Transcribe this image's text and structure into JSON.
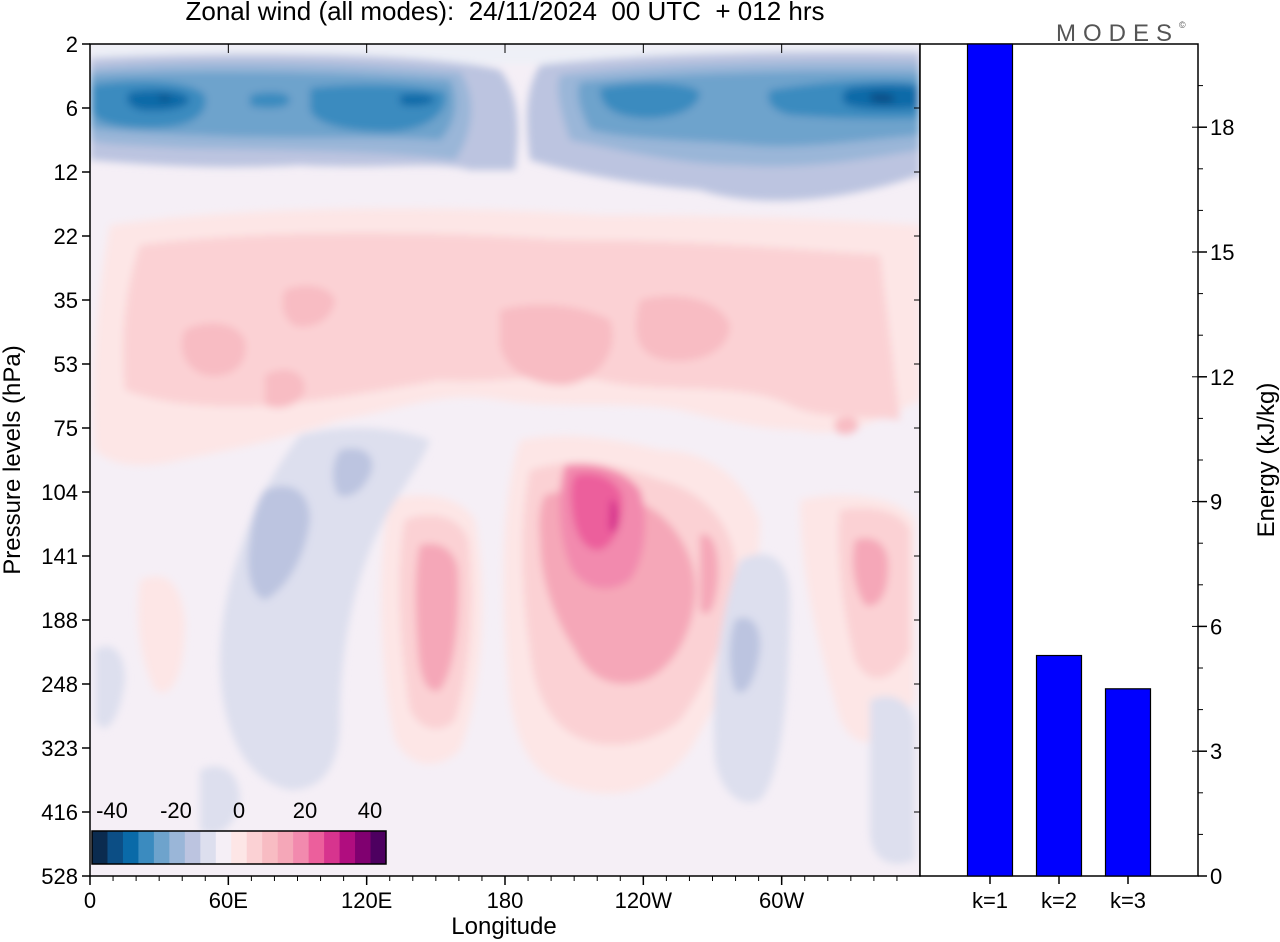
{
  "title": "Zonal wind (all modes):  24/11/2024  00 UTC  + 012 hrs",
  "brand": {
    "name": "MODES",
    "mark": "©"
  },
  "colors": {
    "energy_bar": "#0000ff",
    "scale": [
      "#0b2b4f",
      "#0c4e85",
      "#0a6aa8",
      "#3b8bbf",
      "#6ea3cc",
      "#9ab6d8",
      "#bcc4e0",
      "#dddfee",
      "#f5eff6",
      "#fde6e6",
      "#fbd1d4",
      "#f8bcc3",
      "#f5a7b8",
      "#f28aae",
      "#ec5f9c",
      "#d7348e",
      "#b00d7f",
      "#800070",
      "#4d0060"
    ]
  },
  "chart_data": [
    {
      "type": "heatmap",
      "title": "Zonal wind (all modes):  24/11/2024  00 UTC  + 012 hrs",
      "xlabel": "Longitude",
      "ylabel": "Pressure levels (hPa)",
      "x_ticks": [
        "0",
        "60E",
        "120E",
        "180",
        "120W",
        "60W"
      ],
      "y_ticks": [
        "2",
        "6",
        "12",
        "22",
        "35",
        "53",
        "75",
        "104",
        "141",
        "188",
        "248",
        "323",
        "416",
        "528"
      ],
      "colorbar": {
        "ticks": [
          -40,
          -20,
          0,
          20,
          40
        ],
        "min": -40,
        "max": 40
      },
      "features": [
        {
          "region": "easterly band near 6 hPa, all longitudes",
          "value": -30
        },
        {
          "region": "weak westerlies 22-75 hPa",
          "value": 10
        },
        {
          "region": "westerly core near 180-150W, 104-188 hPa",
          "value": 30
        },
        {
          "region": "weak easterlies 60-90E, 104-248 hPa",
          "value": -8
        }
      ]
    },
    {
      "type": "bar",
      "categories": [
        "k=1",
        "k=2",
        "k=3"
      ],
      "values": [
        20,
        5.3,
        4.5
      ],
      "ylabel": "Energy (kJ/kg)",
      "y_ticks": [
        0,
        3,
        6,
        9,
        12,
        15,
        18
      ],
      "ylim": [
        0,
        20
      ]
    }
  ]
}
